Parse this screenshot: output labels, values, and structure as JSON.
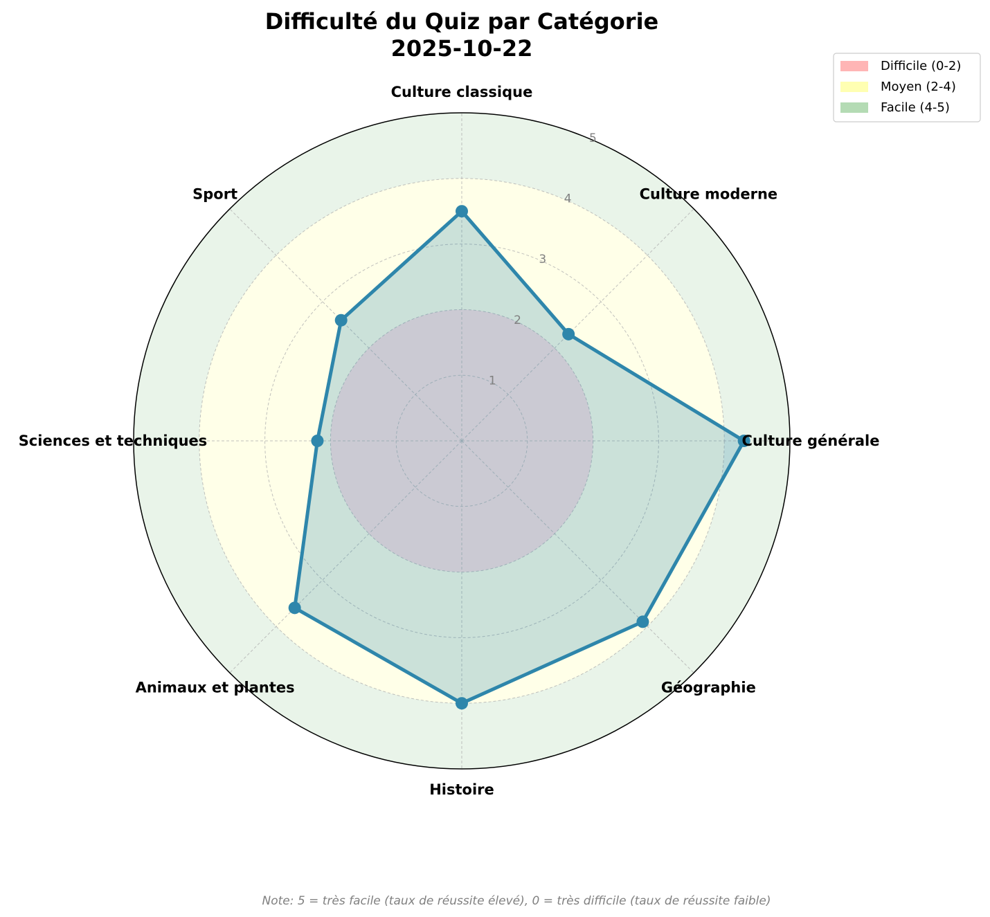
{
  "chart_data": {
    "type": "radar",
    "title": "Difficulté du Quiz par Catégorie",
    "subtitle": "2025-10-22",
    "categories": [
      "Culture générale",
      "Culture moderne",
      "Culture classique",
      "Sport",
      "Sciences et techniques",
      "Animaux et plantes",
      "Histoire",
      "Géographie"
    ],
    "values": [
      4.3,
      2.3,
      3.5,
      2.6,
      2.2,
      3.6,
      4.0,
      3.9
    ],
    "rlim": [
      0,
      5
    ],
    "rticks": [
      "1",
      "2",
      "3",
      "4",
      "5"
    ],
    "grid": true,
    "bands": [
      {
        "label": "Difficile (0-2)",
        "from": 0,
        "to": 2,
        "color": "#ff6b6b"
      },
      {
        "label": "Moyen (2-4)",
        "from": 2,
        "to": 4,
        "color": "#ffff66"
      },
      {
        "label": "Facile (4-5)",
        "from": 4,
        "to": 5,
        "color": "#6ab86a"
      }
    ],
    "series_color": "#2e86ab",
    "legend_position": "top-right",
    "note": "Note: 5 = très facile (taux de réussite élevé), 0 = très difficile (taux de réussite faible)"
  }
}
